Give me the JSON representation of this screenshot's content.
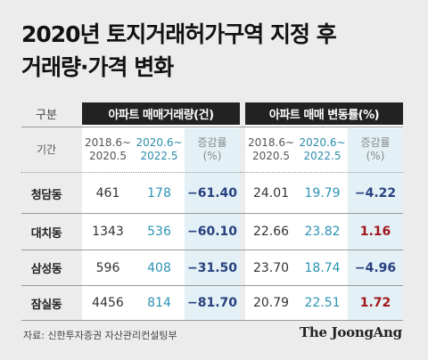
{
  "title": {
    "line1": "2020년 토지거래허가구역 지정 후",
    "line2": "거래량·가격 변화"
  },
  "table": {
    "gubun": "구분",
    "period_label": "기간",
    "group1_title": "아파트 매매거래량(건)",
    "group2_title": "아파트 매매 변동률(%)",
    "subheaders": [
      [
        "2018.6~",
        "2020.5"
      ],
      [
        "2020.6~",
        "2022.5"
      ],
      [
        "증감률",
        "(%)"
      ],
      [
        "2018.6~",
        "2020.5"
      ],
      [
        "2020.6~",
        "2022.5"
      ],
      [
        "증감률",
        "(%)"
      ]
    ],
    "rows": [
      {
        "name": "청담동",
        "v": [
          "461",
          "178",
          "−61.40",
          "24.01",
          "19.79",
          "−4.22"
        ]
      },
      {
        "name": "대치동",
        "v": [
          "1343",
          "536",
          "−60.10",
          "22.66",
          "23.82",
          "1.16"
        ]
      },
      {
        "name": "삼성동",
        "v": [
          "596",
          "408",
          "−31.50",
          "23.70",
          "18.74",
          "−4.96"
        ]
      },
      {
        "name": "잠실동",
        "v": [
          "4456",
          "814",
          "−81.70",
          "20.79",
          "22.51",
          "1.72"
        ]
      }
    ]
  },
  "source": "자료: 신한투자증권 자산관리컨설팅부",
  "logo": "The JoongAng",
  "colors": {
    "accent_teal": "#2b93b5",
    "negative_navy": "#27407f",
    "positive_red": "#a0181d",
    "band_blue": "#e3f1f6"
  }
}
